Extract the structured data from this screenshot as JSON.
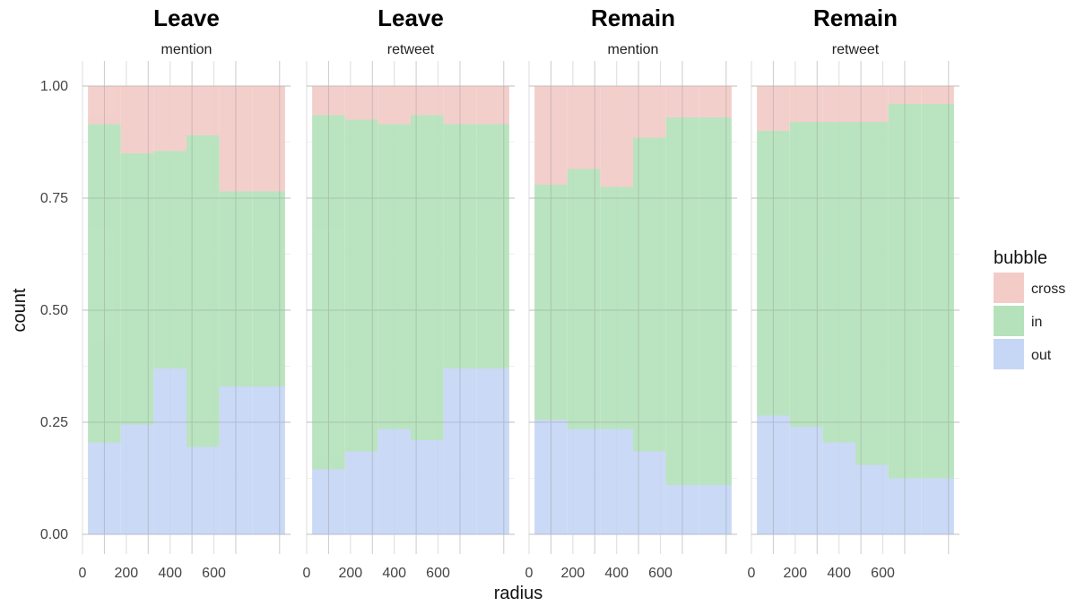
{
  "chart_data": {
    "type": "bar",
    "subtype": "stacked-histogram-proportion",
    "xlabel": "radius",
    "ylabel": "count",
    "ylim": [
      0,
      1
    ],
    "y_ticks": [
      "0.00",
      "0.25",
      "0.50",
      "0.75",
      "1.00"
    ],
    "y_tick_values": [
      0,
      0.25,
      0.5,
      0.75,
      1
    ],
    "x_ticks": [
      "0",
      "200",
      "400",
      "600"
    ],
    "x_tick_values": [
      0,
      200,
      400,
      600
    ],
    "x_domain": [
      0,
      950
    ],
    "grid": true,
    "legend": {
      "title": "bubble",
      "position": "right",
      "entries": [
        {
          "name": "cross",
          "color": "#f3ccc8"
        },
        {
          "name": "in",
          "color": "#b5e2bb"
        },
        {
          "name": "out",
          "color": "#c6d6f5"
        }
      ]
    },
    "bins": [
      {
        "start": 25,
        "end": 175
      },
      {
        "start": 175,
        "end": 325
      },
      {
        "start": 325,
        "end": 475
      },
      {
        "start": 475,
        "end": 625
      },
      {
        "start": 625,
        "end": 775
      },
      {
        "start": 775,
        "end": 925
      }
    ],
    "facets": [
      {
        "title": "Leave",
        "subtitle": "mention",
        "out": [
          0.205,
          0.245,
          0.37,
          0.195,
          0.33,
          0.33
        ],
        "out_in": [
          0.915,
          0.85,
          0.855,
          0.89,
          0.765,
          0.765
        ]
      },
      {
        "title": "Leave",
        "subtitle": "retweet",
        "out": [
          0.145,
          0.185,
          0.235,
          0.21,
          0.37,
          0.37
        ],
        "out_in": [
          0.935,
          0.925,
          0.915,
          0.935,
          0.915,
          0.915
        ]
      },
      {
        "title": "Remain",
        "subtitle": "mention",
        "out": [
          0.255,
          0.235,
          0.235,
          0.185,
          0.11,
          0.11
        ],
        "out_in": [
          0.78,
          0.815,
          0.775,
          0.885,
          0.93,
          0.93
        ]
      },
      {
        "title": "Remain",
        "subtitle": "retweet",
        "out": [
          0.265,
          0.24,
          0.205,
          0.155,
          0.125,
          0.125
        ],
        "out_in": [
          0.9,
          0.92,
          0.92,
          0.92,
          0.96,
          0.96
        ]
      }
    ]
  }
}
